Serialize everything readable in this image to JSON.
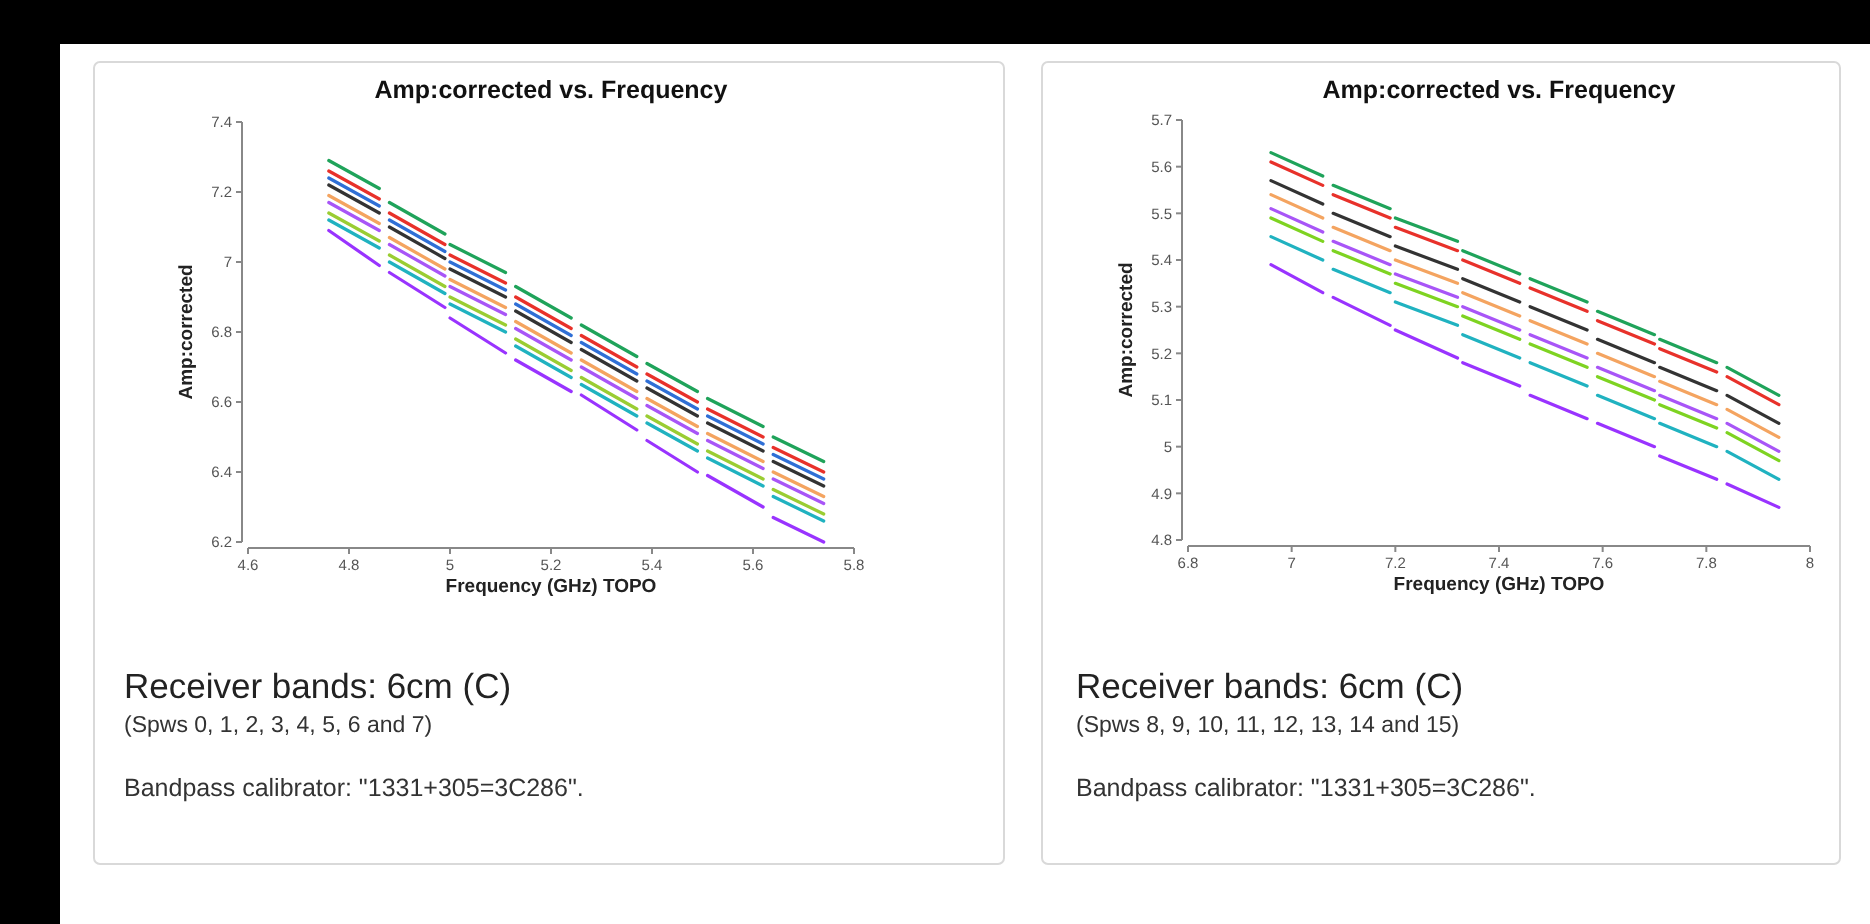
{
  "chart_data": [
    {
      "type": "line",
      "title": "Amp:corrected vs. Frequency",
      "xlabel": "Frequency (GHz) TOPO",
      "ylabel": "Amp:corrected",
      "xlim": [
        4.6,
        5.8
      ],
      "xticks": [
        4.6,
        4.8,
        5,
        5.2,
        5.4,
        5.6,
        5.8
      ],
      "ylim": [
        6.2,
        7.4
      ],
      "yticks": [
        6.2,
        6.4,
        6.6,
        6.8,
        7,
        7.2,
        7.4
      ],
      "marker": "none",
      "line_style": "solid",
      "x": [
        4.76,
        4.86,
        4.87,
        4.88,
        4.99,
        4.995,
        5.0,
        5.11,
        5.12,
        5.13,
        5.24,
        5.25,
        5.26,
        5.37,
        5.38,
        5.39,
        5.49,
        5.5,
        5.51,
        5.62,
        5.63,
        5.64,
        5.74
      ],
      "series": [
        {
          "color": "#1fa35a",
          "values": [
            7.29,
            7.21,
            null,
            7.17,
            7.08,
            null,
            7.05,
            6.97,
            null,
            6.93,
            6.84,
            null,
            6.82,
            6.73,
            null,
            6.71,
            6.63,
            null,
            6.61,
            6.53,
            null,
            6.5,
            6.43
          ]
        },
        {
          "color": "#e8312a",
          "values": [
            7.26,
            7.18,
            null,
            7.14,
            7.05,
            null,
            7.02,
            6.94,
            null,
            6.9,
            6.81,
            null,
            6.79,
            6.7,
            null,
            6.68,
            6.6,
            null,
            6.58,
            6.5,
            null,
            6.47,
            6.4
          ]
        },
        {
          "color": "#2f6fd6",
          "values": [
            7.24,
            7.16,
            null,
            7.12,
            7.03,
            null,
            7.0,
            6.92,
            null,
            6.88,
            6.79,
            null,
            6.77,
            6.68,
            null,
            6.66,
            6.58,
            null,
            6.56,
            6.48,
            null,
            6.45,
            6.38
          ]
        },
        {
          "color": "#333333",
          "values": [
            7.22,
            7.14,
            null,
            7.1,
            7.01,
            null,
            6.98,
            6.9,
            null,
            6.86,
            6.77,
            null,
            6.75,
            6.66,
            null,
            6.64,
            6.56,
            null,
            6.54,
            6.46,
            null,
            6.43,
            6.36
          ]
        },
        {
          "color": "#f4a460",
          "values": [
            7.19,
            7.11,
            null,
            7.07,
            6.98,
            null,
            6.95,
            6.87,
            null,
            6.83,
            6.74,
            null,
            6.72,
            6.63,
            null,
            6.61,
            6.53,
            null,
            6.51,
            6.43,
            null,
            6.4,
            6.33
          ]
        },
        {
          "color": "#a855f7",
          "values": [
            7.17,
            7.09,
            null,
            7.05,
            6.96,
            null,
            6.93,
            6.85,
            null,
            6.81,
            6.72,
            null,
            6.7,
            6.61,
            null,
            6.59,
            6.51,
            null,
            6.49,
            6.41,
            null,
            6.38,
            6.31
          ]
        },
        {
          "color": "#9acd32",
          "values": [
            7.14,
            7.06,
            null,
            7.02,
            6.93,
            null,
            6.9,
            6.82,
            null,
            6.78,
            6.69,
            null,
            6.67,
            6.58,
            null,
            6.56,
            6.48,
            null,
            6.46,
            6.38,
            null,
            6.35,
            6.28
          ]
        },
        {
          "color": "#20b2c0",
          "values": [
            7.12,
            7.04,
            null,
            7.0,
            6.91,
            null,
            6.88,
            6.8,
            null,
            6.76,
            6.67,
            null,
            6.65,
            6.56,
            null,
            6.54,
            6.46,
            null,
            6.44,
            6.36,
            null,
            6.33,
            6.26
          ]
        },
        {
          "color": "#9933ff",
          "values": [
            7.09,
            6.99,
            null,
            6.97,
            6.87,
            null,
            6.84,
            6.74,
            null,
            6.72,
            6.63,
            null,
            6.62,
            6.52,
            null,
            6.49,
            6.4,
            null,
            6.39,
            6.3,
            null,
            6.27,
            6.2
          ]
        }
      ],
      "annotations": [
        "Receiver bands: 6cm (C)",
        "(Spws 0, 1, 2, 3, 4, 5, 6 and 7)",
        "Bandpass calibrator: \"1331+305=3C286\"."
      ]
    },
    {
      "type": "line",
      "title": "Amp:corrected vs. Frequency",
      "xlabel": "Frequency (GHz) TOPO",
      "ylabel": "Amp:corrected",
      "xlim": [
        6.8,
        8
      ],
      "xticks": [
        6.8,
        7,
        7.2,
        7.4,
        7.6,
        7.8,
        8
      ],
      "ylim": [
        4.8,
        5.7
      ],
      "yticks": [
        4.8,
        4.9,
        5,
        5.1,
        5.2,
        5.3,
        5.4,
        5.5,
        5.6,
        5.7
      ],
      "marker": "none",
      "line_style": "solid",
      "x": [
        6.96,
        7.06,
        7.07,
        7.08,
        7.19,
        7.195,
        7.2,
        7.32,
        7.325,
        7.33,
        7.44,
        7.45,
        7.46,
        7.57,
        7.58,
        7.59,
        7.7,
        7.705,
        7.71,
        7.82,
        7.83,
        7.84,
        7.94
      ],
      "series": [
        {
          "color": "#1fa35a",
          "values": [
            5.63,
            5.58,
            null,
            5.56,
            5.51,
            null,
            5.49,
            5.44,
            null,
            5.42,
            5.37,
            null,
            5.36,
            5.31,
            null,
            5.29,
            5.24,
            null,
            5.23,
            5.18,
            null,
            5.17,
            5.11
          ]
        },
        {
          "color": "#e8312a",
          "values": [
            5.61,
            5.56,
            null,
            5.54,
            5.49,
            null,
            5.47,
            5.42,
            null,
            5.4,
            5.35,
            null,
            5.34,
            5.29,
            null,
            5.27,
            5.22,
            null,
            5.21,
            5.16,
            null,
            5.15,
            5.09
          ]
        },
        {
          "color": "#333333",
          "values": [
            5.57,
            5.52,
            null,
            5.5,
            5.45,
            null,
            5.43,
            5.38,
            null,
            5.36,
            5.31,
            null,
            5.3,
            5.25,
            null,
            5.23,
            5.18,
            null,
            5.17,
            5.12,
            null,
            5.11,
            5.05
          ]
        },
        {
          "color": "#f4a460",
          "values": [
            5.54,
            5.49,
            null,
            5.47,
            5.42,
            null,
            5.4,
            5.35,
            null,
            5.33,
            5.28,
            null,
            5.27,
            5.22,
            null,
            5.2,
            5.15,
            null,
            5.14,
            5.09,
            null,
            5.08,
            5.02
          ]
        },
        {
          "color": "#a855f7",
          "values": [
            5.51,
            5.46,
            null,
            5.44,
            5.39,
            null,
            5.37,
            5.32,
            null,
            5.3,
            5.25,
            null,
            5.24,
            5.19,
            null,
            5.17,
            5.12,
            null,
            5.11,
            5.06,
            null,
            5.05,
            4.99
          ]
        },
        {
          "color": "#7ed321",
          "values": [
            5.49,
            5.44,
            null,
            5.42,
            5.37,
            null,
            5.35,
            5.3,
            null,
            5.28,
            5.23,
            null,
            5.22,
            5.17,
            null,
            5.15,
            5.1,
            null,
            5.09,
            5.04,
            null,
            5.03,
            4.97
          ]
        },
        {
          "color": "#20b2c0",
          "values": [
            5.45,
            5.4,
            null,
            5.38,
            5.33,
            null,
            5.31,
            5.26,
            null,
            5.24,
            5.19,
            null,
            5.18,
            5.13,
            null,
            5.11,
            5.06,
            null,
            5.05,
            5.0,
            null,
            4.99,
            4.93
          ]
        },
        {
          "color": "#9933ff",
          "values": [
            5.39,
            5.33,
            null,
            5.32,
            5.26,
            null,
            5.25,
            5.19,
            null,
            5.18,
            5.13,
            null,
            5.11,
            5.06,
            null,
            5.05,
            5.0,
            null,
            4.98,
            4.93,
            null,
            4.92,
            4.87
          ]
        }
      ],
      "annotations": [
        "Receiver bands: 6cm (C)",
        "(Spws 8, 9, 10, 11, 12, 13, 14 and 15)",
        "Bandpass calibrator: \"1331+305=3C286\"."
      ]
    }
  ]
}
